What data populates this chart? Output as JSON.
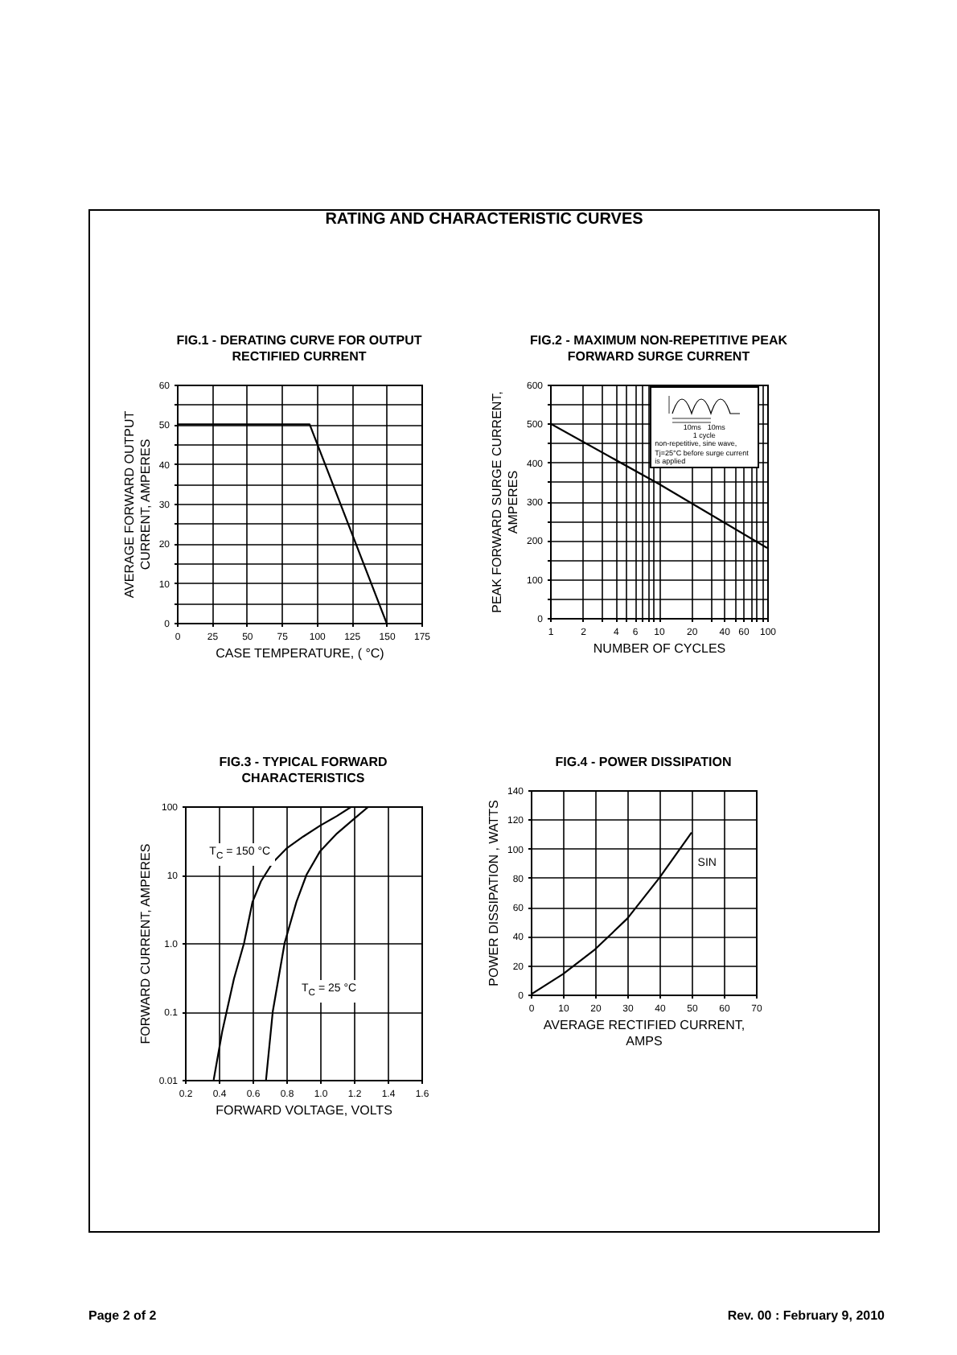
{
  "chart_data": [
    {
      "type": "line",
      "title": "FIG.1 - DERATING CURVE FOR OUTPUT RECTIFIED CURRENT",
      "xlabel": "CASE TEMPERATURE, ( °C)",
      "ylabel": "AVERAGE FORWARD OUTPUT CURRENT, AMPERES",
      "x": [
        0,
        95,
        150
      ],
      "values": [
        50,
        50,
        0
      ],
      "color": "#000000",
      "xlim": [
        0,
        175
      ],
      "xticks": [
        0,
        25,
        50,
        75,
        100,
        125,
        150,
        175
      ],
      "ylim": [
        0,
        60
      ],
      "yticks": [
        0,
        {
          "value": 5,
          "label": null
        },
        10,
        {
          "value": 15,
          "label": null
        },
        20,
        {
          "value": 25,
          "label": null
        },
        30,
        {
          "value": 35,
          "label": null
        },
        40,
        {
          "value": 45,
          "label": null
        },
        50,
        {
          "value": 55,
          "label": null
        },
        60
      ],
      "grid": true,
      "marker": "none",
      "line_style": "solid",
      "annotations": [
        "RATING AND CHARACTERISTIC CURVES"
      ]
    },
    {
      "type": "line",
      "title": "FIG.2 - MAXIMUM NON-REPETITIVE PEAK FORWARD SURGE CURRENT",
      "xlabel": "NUMBER OF CYCLES",
      "ylabel": "PEAK FORWARD SURGE CURRENT, AMPERES",
      "x": [
        1,
        10,
        100
      ],
      "values": [
        500,
        345,
        180
      ],
      "color": "#000000",
      "log": "x",
      "xlim": [
        1,
        100
      ],
      "xticks": [
        1,
        2,
        {
          "value": 3,
          "label": null
        },
        4,
        {
          "value": 5,
          "label": null
        },
        6,
        {
          "value": 7,
          "label": null
        },
        {
          "value": 8,
          "label": null
        },
        {
          "value": 9,
          "label": null
        },
        10,
        20,
        {
          "value": 30,
          "label": null
        },
        40,
        {
          "value": 50,
          "label": null
        },
        60,
        {
          "value": 70,
          "label": null
        },
        {
          "value": 80,
          "label": null
        },
        {
          "value": 90,
          "label": null
        },
        100
      ],
      "ylim": [
        0,
        600
      ],
      "yticks": [
        0,
        {
          "value": 50,
          "label": null
        },
        100,
        {
          "value": 150,
          "label": null
        },
        200,
        {
          "value": 250,
          "label": null
        },
        300,
        {
          "value": 350,
          "label": null
        },
        400,
        {
          "value": 450,
          "label": null
        },
        500,
        {
          "value": 550,
          "label": null
        },
        600
      ],
      "grid": true,
      "marker": "none",
      "line_style": "solid",
      "annotations": [
        "10ms",
        "10ms",
        "1 cycle",
        "non-repetitive, sine wave, Tj=25°C before surge current is applied"
      ]
    },
    {
      "type": "line",
      "title": "FIG.3 - TYPICAL FORWARD CHARACTERISTICS",
      "xlabel": "FORWARD VOLTAGE, VOLTS",
      "ylabel": "FORWARD CURRENT, AMPERES",
      "series": [
        {
          "color": "#000000",
          "x": [
            0.37,
            0.42,
            0.49,
            0.55,
            0.6,
            0.65,
            0.72,
            0.8,
            0.9,
            1.0,
            1.1,
            1.19
          ],
          "values": [
            0.01,
            0.05,
            0.3,
            1,
            4,
            8,
            15,
            24,
            36,
            52,
            72,
            100
          ]
        },
        {
          "color": "#000000",
          "x": [
            0.68,
            0.72,
            0.79,
            0.86,
            0.92,
            1.0,
            1.1,
            1.2,
            1.29
          ],
          "values": [
            0.01,
            0.1,
            1,
            4,
            10,
            22,
            40,
            65,
            100
          ]
        }
      ],
      "log": "y",
      "xlim": [
        0.2,
        1.6
      ],
      "xticks": [
        0.2,
        0.4,
        0.6,
        0.8,
        {
          "value": 1,
          "label": "1.0"
        },
        1.2,
        1.4,
        1.6
      ],
      "ylim": [
        0.01,
        100
      ],
      "yticks": [
        0.01,
        0.1,
        {
          "value": 1,
          "label": "1.0"
        },
        10,
        100
      ],
      "grid": true,
      "marker": "none",
      "line_style": "solid",
      "annotations": [
        "T$_{C}$ = 150 °C",
        "T$_{C}$ = 25 °C"
      ]
    },
    {
      "type": "line",
      "title": "FIG.4 - POWER DISSIPATION",
      "xlabel": "AVERAGE RECTIFIED CURRENT, AMPS",
      "ylabel": "POWER DISSIPATION , WATTS",
      "x": [
        0,
        10,
        20,
        30,
        40,
        50
      ],
      "values": [
        0,
        14,
        31,
        52,
        80,
        111
      ],
      "color": "#000000",
      "xlim": [
        0,
        70
      ],
      "xticks": [
        0,
        10,
        20,
        30,
        40,
        50,
        60,
        70
      ],
      "ylim": [
        0,
        140
      ],
      "yticks": [
        0,
        20,
        40,
        60,
        80,
        100,
        120,
        140
      ],
      "grid": true,
      "marker": "none",
      "line_style": "solid",
      "annotations": [
        "SIN",
        "Page 2 of 2",
        "Rev. 00 : February 9, 2010"
      ]
    }
  ]
}
